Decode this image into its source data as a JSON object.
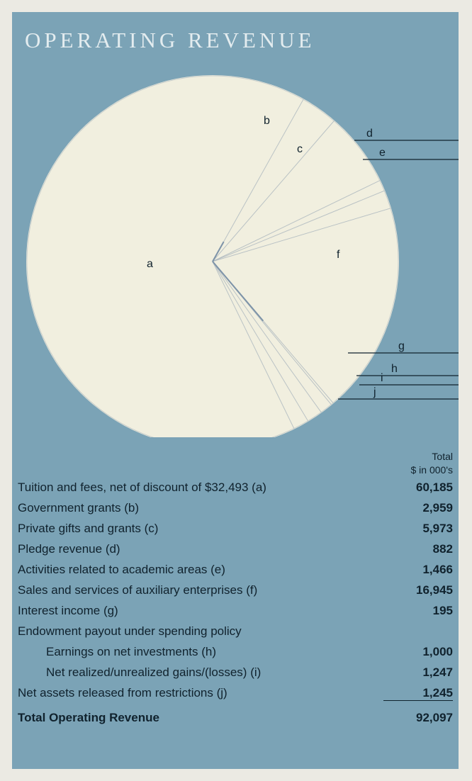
{
  "title": "OPERATING REVENUE",
  "column_header": {
    "line1": "Total",
    "line2": "$ in 000's"
  },
  "chart_data": {
    "type": "pie",
    "title": "OPERATING REVENUE",
    "unit": "$ in 000's",
    "slices": [
      {
        "label": "a",
        "value": 60185
      },
      {
        "label": "b",
        "value": 2959
      },
      {
        "label": "c",
        "value": 5973
      },
      {
        "label": "d",
        "value": 882
      },
      {
        "label": "e",
        "value": 1466
      },
      {
        "label": "f",
        "value": 16945
      },
      {
        "label": "g",
        "value": 195
      },
      {
        "label": "h",
        "value": 1000
      },
      {
        "label": "i",
        "value": 1247
      },
      {
        "label": "j",
        "value": 1245
      }
    ],
    "colors": {
      "panel": "#7ba3b6",
      "pie": "#f1efdf",
      "divider": "#7d93a8",
      "text": "#10222d"
    }
  },
  "rows": [
    {
      "label": "Tuition and fees, net of discount of $32,493 (a)",
      "value": "60,185"
    },
    {
      "label": "Government grants (b)",
      "value": "2,959"
    },
    {
      "label": "Private gifts and grants (c)",
      "value": "5,973"
    },
    {
      "label": "Pledge revenue (d)",
      "value": "882"
    },
    {
      "label": "Activities related to academic areas (e)",
      "value": "1,466"
    },
    {
      "label": "Sales and services of auxiliary enterprises (f)",
      "value": "16,945"
    },
    {
      "label": "Interest income (g)",
      "value": "195"
    },
    {
      "label": "Endowment payout under spending policy",
      "value": ""
    },
    {
      "label": "Earnings on net investments (h)",
      "value": "1,000"
    },
    {
      "label": "Net realized/unrealized gains/(losses) (i)",
      "value": "1,247"
    },
    {
      "label": "Net assets released from restrictions (j)",
      "value": "1,245"
    }
  ],
  "total": {
    "label": "Total Operating Revenue",
    "value": "92,097"
  }
}
